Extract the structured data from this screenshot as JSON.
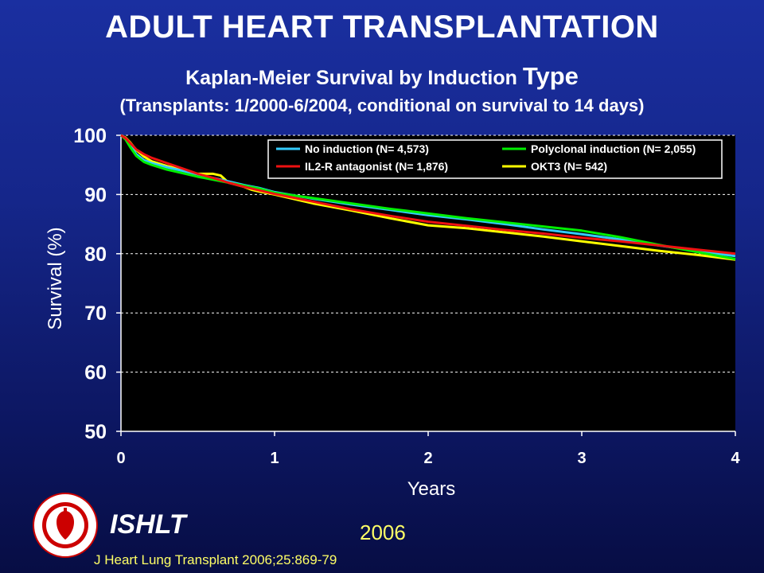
{
  "slide": {
    "title": "ADULT HEART TRANSPLANTATION",
    "subtitle_a": "Kaplan-Meier Survival by Induction ",
    "subtitle_b": "Type",
    "subtitle2": "(Transplants: 1/2000-6/2004, conditional on survival to 14 days)",
    "organization": "ISHLT",
    "year": "2006",
    "citation": "J Heart Lung Transplant 2006;25:869-79"
  },
  "colors": {
    "plot_bg": "#000000",
    "grid": "#ffffff",
    "text": "#ffffff",
    "accent_yellow": "#ffff66"
  },
  "chart_data": {
    "type": "line",
    "xlabel": "Years",
    "ylabel": "Survival (%)",
    "xlim": [
      0,
      4
    ],
    "ylim": [
      50,
      100
    ],
    "xticks": [
      0,
      1,
      2,
      3,
      4
    ],
    "yticks": [
      50,
      60,
      70,
      80,
      90,
      100
    ],
    "grid": "horizontal dashed",
    "legend_position": "top-right, inside plot, 2 columns",
    "series": [
      {
        "name": "No induction (N= 4,573)",
        "color": "#33ccff",
        "x": [
          0,
          0.03,
          0.06,
          0.1,
          0.15,
          0.2,
          0.3,
          0.4,
          0.5,
          0.6,
          0.7,
          0.8,
          0.9,
          1.0,
          1.25,
          1.5,
          1.75,
          2.0,
          2.25,
          2.5,
          2.75,
          3.0,
          3.25,
          3.5,
          3.75,
          4.0
        ],
        "y": [
          100,
          99.5,
          98.3,
          96.8,
          95.8,
          95.3,
          94.6,
          94.0,
          93.4,
          92.8,
          92.2,
          91.6,
          91.1,
          90.4,
          89.3,
          88.3,
          87.4,
          86.5,
          85.8,
          85.0,
          84.1,
          83.3,
          82.4,
          81.4,
          80.5,
          79.6
        ]
      },
      {
        "name": "Polyclonal induction (N= 2,055)",
        "color": "#00ee00",
        "x": [
          0,
          0.03,
          0.06,
          0.1,
          0.15,
          0.2,
          0.3,
          0.4,
          0.5,
          0.6,
          0.7,
          0.8,
          0.9,
          1.0,
          1.25,
          1.5,
          1.75,
          2.0,
          2.25,
          2.5,
          2.75,
          3.0,
          3.25,
          3.5,
          3.75,
          4.0
        ],
        "y": [
          100,
          99.3,
          98.0,
          96.5,
          95.5,
          95.0,
          94.2,
          93.6,
          93.0,
          92.5,
          92.0,
          91.5,
          91.0,
          90.3,
          89.4,
          88.5,
          87.6,
          86.8,
          86.0,
          85.3,
          84.6,
          83.9,
          82.8,
          81.5,
          80.3,
          79.1
        ]
      },
      {
        "name": "IL2-R antagonist (N= 1,876)",
        "color": "#ee1111",
        "x": [
          0,
          0.03,
          0.06,
          0.1,
          0.15,
          0.2,
          0.3,
          0.4,
          0.5,
          0.6,
          0.7,
          0.8,
          0.9,
          1.0,
          1.25,
          1.5,
          1.75,
          2.0,
          2.25,
          2.5,
          2.75,
          3.0,
          3.25,
          3.5,
          3.75,
          4.0
        ],
        "y": [
          100,
          99.5,
          98.7,
          97.6,
          96.8,
          96.2,
          95.3,
          94.4,
          93.5,
          92.8,
          92.0,
          91.3,
          90.7,
          90.1,
          88.8,
          87.5,
          86.4,
          85.4,
          84.7,
          84.0,
          83.4,
          82.7,
          82.1,
          81.4,
          80.7,
          80.0
        ]
      },
      {
        "name": "OKT3 (N= 542)",
        "color": "#ffff00",
        "x": [
          0,
          0.03,
          0.06,
          0.1,
          0.15,
          0.2,
          0.3,
          0.4,
          0.5,
          0.6,
          0.65,
          0.7,
          0.8,
          0.85,
          0.9,
          1.0,
          1.25,
          1.5,
          1.75,
          2.0,
          2.25,
          2.5,
          2.75,
          3.0,
          3.25,
          3.5,
          3.75,
          4.0
        ],
        "y": [
          100,
          99.6,
          98.8,
          97.5,
          96.4,
          95.6,
          94.8,
          94.2,
          93.5,
          93.5,
          93.2,
          92.0,
          91.3,
          90.8,
          90.5,
          90.0,
          88.5,
          87.3,
          86.0,
          84.8,
          84.3,
          83.6,
          82.9,
          82.1,
          81.3,
          80.5,
          79.8,
          79.0
        ]
      }
    ]
  }
}
